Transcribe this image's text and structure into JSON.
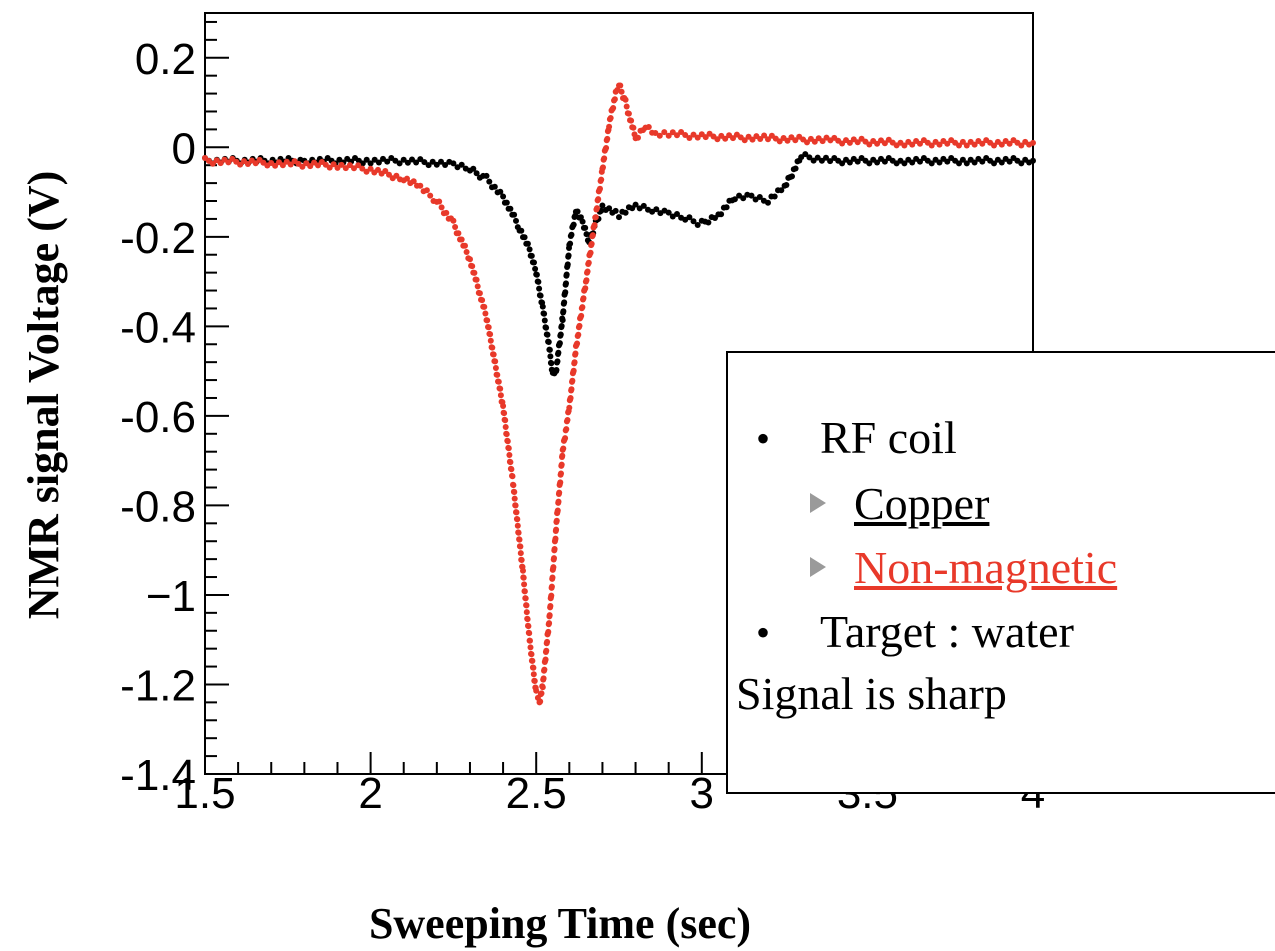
{
  "chart_data": {
    "type": "scatter",
    "title": "",
    "xlabel": "Sweeping Time (sec)",
    "ylabel": "NMR signal Voltage (V)",
    "xlim": [
      1.5,
      4
    ],
    "ylim": [
      -1.4,
      0.3
    ],
    "x_ticks": [
      "1.5",
      "2",
      "2.5",
      "3",
      "3.5",
      "4"
    ],
    "x_tick_values": [
      1.5,
      2,
      2.5,
      3,
      3.5,
      4
    ],
    "y_ticks": [
      "0.2",
      "0",
      "-0.2",
      "-0.4",
      "-0.6",
      "-0.8",
      "−1",
      "-1.2",
      "-1.4"
    ],
    "y_tick_values": [
      0.2,
      0,
      -0.2,
      -0.4,
      -0.6,
      -0.8,
      -1,
      -1.2,
      -1.4
    ],
    "grid": false,
    "series": [
      {
        "name": "Copper",
        "color": "#000000",
        "points": [
          [
            1.5,
            -0.03
          ],
          [
            1.8,
            -0.03
          ],
          [
            2.0,
            -0.03
          ],
          [
            2.1,
            -0.03
          ],
          [
            2.2,
            -0.035
          ],
          [
            2.25,
            -0.04
          ],
          [
            2.3,
            -0.05
          ],
          [
            2.35,
            -0.07
          ],
          [
            2.4,
            -0.11
          ],
          [
            2.45,
            -0.18
          ],
          [
            2.48,
            -0.23
          ],
          [
            2.5,
            -0.28
          ],
          [
            2.52,
            -0.36
          ],
          [
            2.54,
            -0.45
          ],
          [
            2.55,
            -0.51
          ],
          [
            2.56,
            -0.5
          ],
          [
            2.58,
            -0.38
          ],
          [
            2.6,
            -0.22
          ],
          [
            2.62,
            -0.14
          ],
          [
            2.64,
            -0.17
          ],
          [
            2.66,
            -0.21
          ],
          [
            2.68,
            -0.17
          ],
          [
            2.7,
            -0.13
          ],
          [
            2.75,
            -0.15
          ],
          [
            2.8,
            -0.13
          ],
          [
            2.85,
            -0.14
          ],
          [
            2.9,
            -0.15
          ],
          [
            2.95,
            -0.16
          ],
          [
            3.0,
            -0.17
          ],
          [
            3.05,
            -0.15
          ],
          [
            3.1,
            -0.11
          ],
          [
            3.15,
            -0.11
          ],
          [
            3.2,
            -0.12
          ],
          [
            3.25,
            -0.09
          ],
          [
            3.3,
            -0.02
          ],
          [
            3.4,
            -0.03
          ],
          [
            3.6,
            -0.03
          ],
          [
            3.8,
            -0.03
          ],
          [
            4.0,
            -0.03
          ]
        ]
      },
      {
        "name": "Non-magnetic",
        "color": "#e8392a",
        "points": [
          [
            1.5,
            -0.03
          ],
          [
            1.7,
            -0.035
          ],
          [
            1.9,
            -0.04
          ],
          [
            2.0,
            -0.05
          ],
          [
            2.1,
            -0.07
          ],
          [
            2.15,
            -0.09
          ],
          [
            2.2,
            -0.12
          ],
          [
            2.25,
            -0.17
          ],
          [
            2.3,
            -0.25
          ],
          [
            2.35,
            -0.38
          ],
          [
            2.4,
            -0.58
          ],
          [
            2.43,
            -0.75
          ],
          [
            2.46,
            -0.95
          ],
          [
            2.48,
            -1.1
          ],
          [
            2.5,
            -1.22
          ],
          [
            2.51,
            -1.24
          ],
          [
            2.52,
            -1.2
          ],
          [
            2.54,
            -1.05
          ],
          [
            2.56,
            -0.85
          ],
          [
            2.58,
            -0.68
          ],
          [
            2.6,
            -0.58
          ],
          [
            2.62,
            -0.45
          ],
          [
            2.65,
            -0.3
          ],
          [
            2.68,
            -0.15
          ],
          [
            2.7,
            -0.05
          ],
          [
            2.72,
            0.05
          ],
          [
            2.74,
            0.12
          ],
          [
            2.75,
            0.14
          ],
          [
            2.77,
            0.1
          ],
          [
            2.8,
            0.02
          ],
          [
            2.83,
            0.05
          ],
          [
            2.86,
            0.03
          ],
          [
            2.9,
            0.03
          ],
          [
            3.0,
            0.025
          ],
          [
            3.2,
            0.02
          ],
          [
            3.4,
            0.015
          ],
          [
            3.6,
            0.01
          ],
          [
            3.8,
            0.01
          ],
          [
            4.0,
            0.01
          ]
        ]
      }
    ]
  },
  "legend": {
    "heading": "RF coil",
    "copper_label": "Copper",
    "nonmag_label": "Non-magnetic",
    "target_label": "Target : water",
    "note": "Signal is sharp",
    "bullet": "•"
  }
}
